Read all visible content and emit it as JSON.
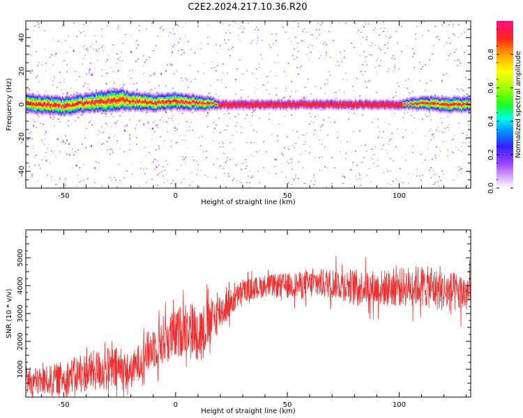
{
  "title": "C2E2.2024.217.10.36.R20",
  "chart_data": [
    {
      "type": "heatmap",
      "xlabel": "Height of straight line (km)",
      "ylabel": "Frequency (Hz)",
      "xlim": [
        -67,
        132
      ],
      "ylim": [
        -50,
        50
      ],
      "xticks": [
        -50,
        0,
        50,
        100
      ],
      "yticks": [
        -40,
        -20,
        0,
        20,
        40
      ],
      "colorbar": {
        "label": "Normalized spectral amplitude",
        "range": [
          0,
          1
        ],
        "ticks": [
          "0.0",
          "0.2",
          "0.4",
          "0.6",
          "0.8"
        ]
      },
      "ridge": {
        "x": [
          -67,
          -60,
          -50,
          -40,
          -30,
          -25,
          -20,
          -10,
          0,
          10,
          15,
          20,
          30,
          40,
          60,
          80,
          100,
          110,
          120,
          132
        ],
        "center_hz": [
          1,
          0,
          -1,
          1,
          2,
          3,
          2,
          1,
          2,
          1,
          1,
          0,
          0,
          0,
          0,
          0,
          0,
          1,
          0,
          0
        ],
        "spread_hz": [
          4,
          4,
          4,
          4,
          5,
          5,
          4,
          3.5,
          3.5,
          3,
          2.5,
          1,
          1,
          1,
          1,
          1,
          1,
          2.5,
          3,
          3
        ]
      }
    },
    {
      "type": "line",
      "xlabel": "Height of straight line (km)",
      "ylabel": "SNR (10 * v/v)",
      "xlim": [
        -67,
        132
      ],
      "ylim": [
        0,
        6000
      ],
      "xticks": [
        -50,
        0,
        50,
        100
      ],
      "yticks": [
        1000,
        2000,
        3000,
        4000,
        5000
      ],
      "color": "#f03030",
      "series": [
        {
          "x": [
            -67,
            -60,
            -50,
            -40,
            -30,
            -25,
            -20,
            -15,
            -10,
            -5,
            0,
            5,
            10,
            15,
            20,
            25,
            30,
            40,
            50,
            60,
            70,
            80,
            90,
            100,
            110,
            120,
            132
          ],
          "mean": [
            600,
            550,
            700,
            900,
            1000,
            1000,
            900,
            1400,
            1800,
            2100,
            2200,
            2600,
            2300,
            2600,
            3100,
            3400,
            3800,
            4000,
            4000,
            4050,
            4100,
            4000,
            3900,
            3950,
            4000,
            3800,
            3700
          ],
          "noise": [
            500,
            500,
            600,
            700,
            800,
            800,
            600,
            700,
            800,
            900,
            900,
            1000,
            1000,
            900,
            700,
            500,
            400,
            400,
            450,
            500,
            550,
            600,
            650,
            700,
            750,
            750,
            700
          ]
        }
      ]
    }
  ]
}
